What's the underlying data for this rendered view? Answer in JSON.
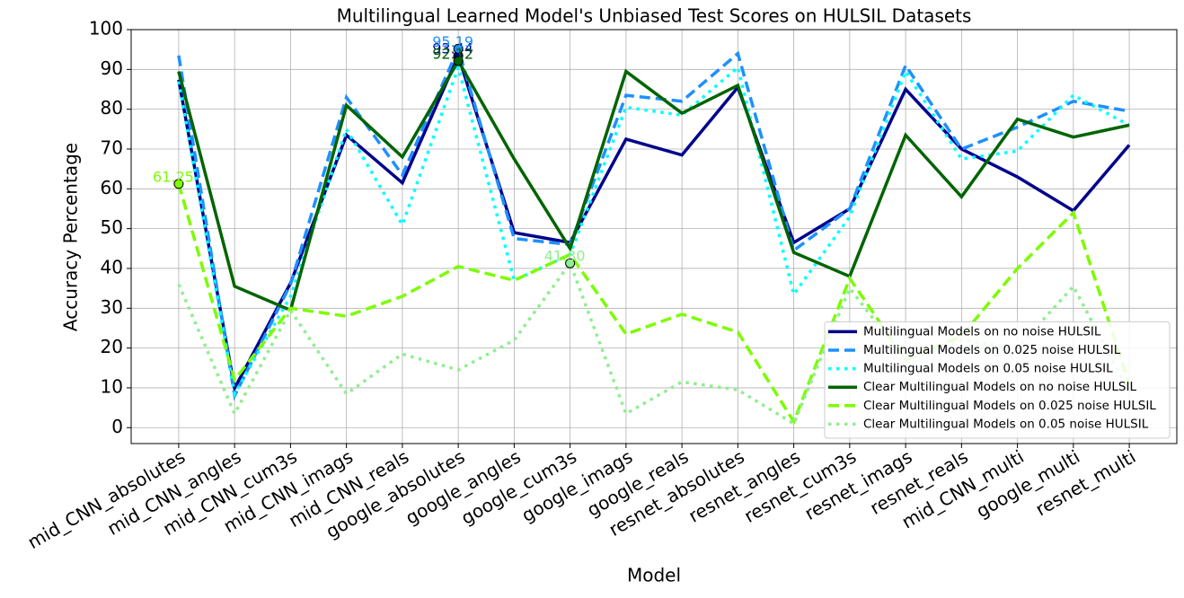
{
  "chart_data": {
    "type": "line",
    "title": "Multilingual Learned Model's Unbiased Test Scores on HULSIL Datasets",
    "x_label": "Model",
    "y_label": "Accuracy Percentage",
    "categories": [
      "mid_CNN_absolutes",
      "mid_CNN_angles",
      "mid_CNN_cum3s",
      "mid_CNN_imags",
      "mid_CNN_reals",
      "google_absolutes",
      "google_angles",
      "google_cum3s",
      "google_imags",
      "google_reals",
      "resnet_absolutes",
      "resnet_angles",
      "resnet_cum3s",
      "resnet_imags",
      "resnet_reals",
      "mid_CNN_multi",
      "google_multi",
      "resnet_multi"
    ],
    "series": [
      {
        "name": "Multilingual Models on no noise HULSIL",
        "color": "#00008b",
        "linestyle": "solid",
        "values": [
          87.4,
          9.9,
          36.3,
          73.5,
          61.5,
          93.44,
          49,
          46.5,
          72.5,
          68.5,
          85.5,
          46.5,
          55,
          85,
          70,
          63,
          54.5,
          71
        ],
        "value_labels": [
          null,
          null,
          null,
          null,
          null,
          "93.44",
          null,
          null,
          null,
          null,
          null,
          null,
          null,
          null,
          null,
          null,
          null,
          null
        ]
      },
      {
        "name": "Multilingual Models on 0.025 noise HULSIL",
        "color": "#1e90ff",
        "linestyle": "dashed",
        "values": [
          93.5,
          8,
          36,
          83,
          63.5,
          95.19,
          47.5,
          46,
          83.5,
          82,
          94,
          44.5,
          55,
          91,
          70,
          75.5,
          82,
          79.5
        ],
        "value_labels": [
          null,
          null,
          null,
          null,
          null,
          "95.19",
          null,
          null,
          null,
          null,
          null,
          null,
          null,
          null,
          null,
          null,
          null,
          null
        ]
      },
      {
        "name": "Multilingual Models on 0.05 noise HULSIL",
        "color": "#00ffff",
        "linestyle": "dotted",
        "values": [
          87,
          8.5,
          33,
          75,
          51,
          90.5,
          37,
          43.5,
          80.5,
          78.5,
          90.5,
          33.5,
          53,
          89.5,
          67.5,
          69.5,
          83.5,
          76
        ],
        "value_labels": [
          null,
          null,
          null,
          null,
          null,
          null,
          null,
          null,
          null,
          null,
          null,
          null,
          null,
          null,
          null,
          null,
          null,
          null
        ]
      },
      {
        "name": "Clear Multilingual Models on no noise HULSIL",
        "color": "#006400",
        "linestyle": "solid",
        "values": [
          89.5,
          35.5,
          29.5,
          81,
          68,
          92.12,
          67.5,
          45,
          89.5,
          79,
          86,
          44,
          38,
          73.5,
          58,
          77.5,
          73,
          76
        ],
        "value_labels": [
          null,
          null,
          null,
          null,
          null,
          "92.12",
          null,
          null,
          null,
          null,
          null,
          null,
          null,
          null,
          null,
          null,
          null,
          null
        ]
      },
      {
        "name": "Clear Multilingual Models on 0.025 noise HULSIL",
        "color": "#7cfc00",
        "linestyle": "dashed",
        "values": [
          61.25,
          12,
          30,
          28,
          33,
          40.5,
          37,
          43.5,
          23.5,
          28.5,
          24,
          1.5,
          37.5,
          17,
          23,
          40,
          54,
          11
        ],
        "value_labels": [
          "61.25",
          null,
          null,
          null,
          null,
          null,
          null,
          null,
          null,
          null,
          null,
          null,
          null,
          null,
          null,
          null,
          null,
          null
        ]
      },
      {
        "name": "Clear Multilingual Models on 0.05 noise HULSIL",
        "color": "#90ee90",
        "linestyle": "dotted",
        "values": [
          36,
          3.5,
          29.5,
          8.5,
          18.5,
          14.5,
          22,
          41.3,
          3.5,
          11.5,
          9.5,
          1,
          35,
          17,
          22,
          20,
          35.5,
          9
        ],
        "value_labels": [
          null,
          null,
          null,
          null,
          null,
          null,
          null,
          "41.30",
          null,
          null,
          null,
          null,
          null,
          null,
          null,
          null,
          null,
          null
        ]
      }
    ],
    "ylim": [
      -4,
      100
    ],
    "yticks": [
      0,
      10,
      20,
      30,
      40,
      50,
      60,
      70,
      80,
      90,
      100
    ],
    "grid": true,
    "legend": "lower right"
  }
}
